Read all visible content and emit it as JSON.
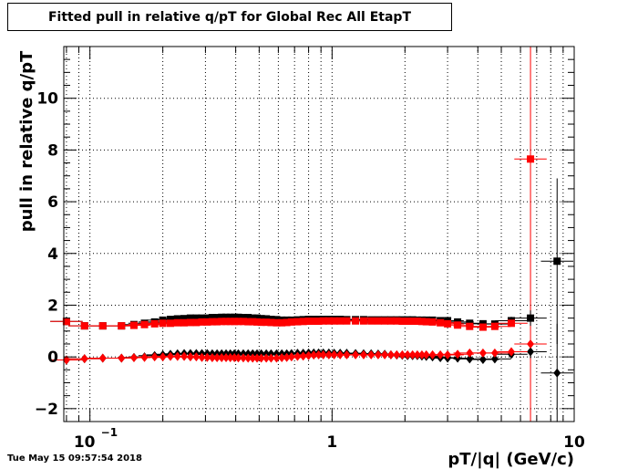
{
  "title": "Fitted pull in relative q/pT for Global Rec All EtapT",
  "timestamp": "Tue May 15 09:57:54 2018",
  "chart_data": {
    "type": "scatter",
    "title": "Fitted pull in relative q/pT for Global Rec All EtapT",
    "xlabel": "pT/|q| (GeV/c)",
    "ylabel": "pull in relative q/pT",
    "x_scale": "log",
    "xlim": [
      0.078,
      10
    ],
    "ylim": [
      -2.5,
      12
    ],
    "grid": true,
    "x_major_ticks": [
      {
        "value": 0.1,
        "label": "10",
        "exp": "−1"
      },
      {
        "value": 1,
        "label": "1"
      },
      {
        "value": 10,
        "label": "10"
      }
    ],
    "y_ticks": [
      -2,
      0,
      2,
      4,
      6,
      8,
      10
    ],
    "y_tick_labels": [
      "−2",
      "0",
      "2",
      "4",
      "6",
      "8",
      "10"
    ],
    "red_vertical_line_x": 6.6,
    "series": [
      {
        "color": "#000000",
        "marker": "square",
        "x": [
          0.08,
          0.095,
          0.113,
          0.135,
          0.152,
          0.168,
          0.185,
          0.2,
          0.215,
          0.23,
          0.245,
          0.26,
          0.275,
          0.29,
          0.305,
          0.32,
          0.335,
          0.35,
          0.365,
          0.38,
          0.395,
          0.41,
          0.43,
          0.45,
          0.47,
          0.49,
          0.51,
          0.535,
          0.56,
          0.59,
          0.62,
          0.65,
          0.68,
          0.72,
          0.76,
          0.8,
          0.84,
          0.88,
          0.92,
          0.97,
          1.02,
          1.08,
          1.15,
          1.25,
          1.35,
          1.45,
          1.55,
          1.65,
          1.75,
          1.85,
          1.95,
          2.05,
          2.15,
          2.25,
          2.35,
          2.45,
          2.6,
          2.8,
          3.0,
          3.3,
          3.7,
          4.2,
          4.7,
          5.5,
          6.6,
          8.5
        ],
        "y": [
          1.37,
          1.2,
          1.2,
          1.2,
          1.25,
          1.3,
          1.35,
          1.42,
          1.45,
          1.47,
          1.48,
          1.5,
          1.5,
          1.5,
          1.5,
          1.52,
          1.52,
          1.53,
          1.53,
          1.53,
          1.53,
          1.53,
          1.52,
          1.52,
          1.5,
          1.5,
          1.48,
          1.47,
          1.45,
          1.44,
          1.42,
          1.42,
          1.42,
          1.43,
          1.44,
          1.45,
          1.45,
          1.45,
          1.45,
          1.45,
          1.45,
          1.45,
          1.44,
          1.44,
          1.44,
          1.43,
          1.43,
          1.43,
          1.43,
          1.43,
          1.43,
          1.43,
          1.43,
          1.42,
          1.42,
          1.42,
          1.42,
          1.4,
          1.4,
          1.35,
          1.3,
          1.28,
          1.27,
          1.4,
          1.5,
          3.7
        ],
        "y_err": [
          0,
          0,
          0,
          0,
          0,
          0,
          0,
          0,
          0,
          0,
          0,
          0,
          0,
          0,
          0,
          0,
          0,
          0,
          0,
          0,
          0,
          0,
          0,
          0,
          0,
          0,
          0,
          0,
          0,
          0,
          0,
          0,
          0,
          0,
          0,
          0,
          0,
          0,
          0,
          0,
          0,
          0,
          0,
          0,
          0,
          0,
          0,
          0,
          0,
          0,
          0,
          0,
          0,
          0,
          0,
          0,
          0,
          0,
          0,
          0,
          0,
          0.1,
          0.1,
          0.15,
          0.3,
          3.2
        ]
      },
      {
        "color": "#ff0000",
        "marker": "square",
        "x": [
          0.08,
          0.095,
          0.113,
          0.135,
          0.152,
          0.168,
          0.185,
          0.2,
          0.215,
          0.23,
          0.245,
          0.26,
          0.275,
          0.29,
          0.305,
          0.32,
          0.335,
          0.35,
          0.365,
          0.38,
          0.395,
          0.41,
          0.43,
          0.45,
          0.47,
          0.49,
          0.51,
          0.535,
          0.56,
          0.59,
          0.62,
          0.65,
          0.68,
          0.72,
          0.76,
          0.8,
          0.84,
          0.88,
          0.92,
          0.97,
          1.02,
          1.08,
          1.15,
          1.25,
          1.35,
          1.45,
          1.55,
          1.65,
          1.75,
          1.85,
          1.95,
          2.05,
          2.15,
          2.25,
          2.35,
          2.45,
          2.6,
          2.8,
          3.0,
          3.3,
          3.7,
          4.2,
          4.7,
          5.5,
          6.6
        ],
        "y": [
          1.37,
          1.2,
          1.2,
          1.2,
          1.22,
          1.25,
          1.28,
          1.3,
          1.3,
          1.32,
          1.32,
          1.33,
          1.33,
          1.35,
          1.35,
          1.36,
          1.36,
          1.37,
          1.37,
          1.37,
          1.37,
          1.37,
          1.37,
          1.36,
          1.36,
          1.35,
          1.34,
          1.34,
          1.33,
          1.32,
          1.32,
          1.33,
          1.35,
          1.36,
          1.37,
          1.38,
          1.38,
          1.38,
          1.39,
          1.39,
          1.39,
          1.39,
          1.39,
          1.39,
          1.39,
          1.39,
          1.39,
          1.39,
          1.39,
          1.39,
          1.38,
          1.38,
          1.38,
          1.38,
          1.37,
          1.36,
          1.35,
          1.32,
          1.28,
          1.23,
          1.18,
          1.15,
          1.18,
          1.3,
          7.65
        ],
        "y_err": [
          0,
          0,
          0,
          0,
          0,
          0,
          0,
          0,
          0,
          0,
          0,
          0,
          0,
          0,
          0,
          0,
          0,
          0,
          0,
          0,
          0,
          0,
          0,
          0,
          0,
          0,
          0,
          0,
          0,
          0,
          0,
          0,
          0,
          0,
          0,
          0,
          0,
          0,
          0,
          0,
          0,
          0,
          0,
          0,
          0,
          0,
          0,
          0,
          0,
          0,
          0,
          0,
          0,
          0,
          0,
          0,
          0,
          0,
          0,
          0,
          0.05,
          0.05,
          0.1,
          0.1,
          0
        ]
      },
      {
        "color": "#000000",
        "marker": "diamond",
        "x": [
          0.08,
          0.095,
          0.113,
          0.135,
          0.152,
          0.168,
          0.185,
          0.2,
          0.215,
          0.23,
          0.245,
          0.26,
          0.275,
          0.29,
          0.305,
          0.32,
          0.335,
          0.35,
          0.365,
          0.38,
          0.395,
          0.41,
          0.43,
          0.45,
          0.47,
          0.49,
          0.51,
          0.535,
          0.56,
          0.59,
          0.62,
          0.65,
          0.68,
          0.72,
          0.76,
          0.8,
          0.84,
          0.88,
          0.92,
          0.97,
          1.02,
          1.08,
          1.15,
          1.25,
          1.35,
          1.45,
          1.55,
          1.65,
          1.75,
          1.85,
          1.95,
          2.05,
          2.15,
          2.25,
          2.35,
          2.45,
          2.6,
          2.8,
          3.0,
          3.3,
          3.7,
          4.2,
          4.7,
          5.5,
          6.6,
          8.5
        ],
        "y": [
          -0.12,
          -0.07,
          -0.05,
          -0.05,
          -0.02,
          0.0,
          0.05,
          0.08,
          0.1,
          0.12,
          0.13,
          0.13,
          0.13,
          0.13,
          0.13,
          0.12,
          0.12,
          0.12,
          0.12,
          0.12,
          0.12,
          0.12,
          0.12,
          0.12,
          0.12,
          0.12,
          0.12,
          0.12,
          0.12,
          0.12,
          0.12,
          0.12,
          0.13,
          0.14,
          0.14,
          0.15,
          0.15,
          0.15,
          0.15,
          0.15,
          0.14,
          0.14,
          0.14,
          0.13,
          0.12,
          0.12,
          0.11,
          0.1,
          0.08,
          0.07,
          0.06,
          0.05,
          0.05,
          0.05,
          0.03,
          0.02,
          0.0,
          -0.03,
          -0.05,
          -0.05,
          -0.08,
          -0.1,
          -0.08,
          0.1,
          0.2,
          -0.62
        ],
        "y_err": [
          0,
          0,
          0,
          0,
          0,
          0,
          0,
          0,
          0,
          0,
          0,
          0,
          0,
          0,
          0,
          0,
          0,
          0,
          0,
          0,
          0,
          0,
          0,
          0,
          0,
          0,
          0,
          0,
          0,
          0,
          0,
          0,
          0,
          0,
          0,
          0,
          0,
          0,
          0,
          0,
          0,
          0,
          0,
          0,
          0,
          0,
          0,
          0,
          0,
          0,
          0,
          0,
          0,
          0,
          0,
          0,
          0,
          0,
          0,
          0,
          0,
          0.05,
          0.05,
          0.1,
          0.25,
          1.9
        ]
      },
      {
        "color": "#ff0000",
        "marker": "diamond",
        "x": [
          0.08,
          0.095,
          0.113,
          0.135,
          0.152,
          0.168,
          0.185,
          0.2,
          0.215,
          0.23,
          0.245,
          0.26,
          0.275,
          0.29,
          0.305,
          0.32,
          0.335,
          0.35,
          0.365,
          0.38,
          0.395,
          0.41,
          0.43,
          0.45,
          0.47,
          0.49,
          0.51,
          0.535,
          0.56,
          0.59,
          0.62,
          0.65,
          0.68,
          0.72,
          0.76,
          0.8,
          0.84,
          0.88,
          0.92,
          0.97,
          1.02,
          1.08,
          1.15,
          1.25,
          1.35,
          1.45,
          1.55,
          1.65,
          1.75,
          1.85,
          1.95,
          2.05,
          2.15,
          2.25,
          2.35,
          2.45,
          2.6,
          2.8,
          3.0,
          3.3,
          3.7,
          4.2,
          4.7,
          5.5,
          6.6
        ],
        "y": [
          -0.12,
          -0.07,
          -0.05,
          -0.05,
          -0.03,
          -0.02,
          0.0,
          0.0,
          0.02,
          0.02,
          0.02,
          0.0,
          0.0,
          -0.02,
          -0.02,
          -0.03,
          -0.03,
          -0.03,
          -0.03,
          -0.03,
          -0.03,
          -0.04,
          -0.04,
          -0.05,
          -0.05,
          -0.05,
          -0.05,
          -0.05,
          -0.05,
          -0.05,
          -0.03,
          -0.02,
          0.0,
          0.02,
          0.03,
          0.05,
          0.07,
          0.08,
          0.08,
          0.08,
          0.08,
          0.08,
          0.08,
          0.08,
          0.08,
          0.08,
          0.08,
          0.08,
          0.08,
          0.08,
          0.08,
          0.08,
          0.08,
          0.08,
          0.08,
          0.08,
          0.08,
          0.08,
          0.08,
          0.1,
          0.15,
          0.15,
          0.15,
          0.2,
          0.5
        ],
        "y_err": [
          0,
          0,
          0,
          0,
          0,
          0,
          0,
          0,
          0,
          0,
          0,
          0,
          0,
          0,
          0,
          0,
          0,
          0,
          0,
          0,
          0,
          0,
          0,
          0,
          0,
          0,
          0,
          0,
          0,
          0,
          0,
          0,
          0,
          0,
          0,
          0,
          0,
          0,
          0,
          0,
          0,
          0,
          0,
          0,
          0,
          0,
          0,
          0,
          0,
          0,
          0,
          0,
          0,
          0,
          0,
          0,
          0,
          0,
          0,
          0,
          0,
          0,
          0.05,
          0.08,
          0.1
        ]
      }
    ]
  }
}
